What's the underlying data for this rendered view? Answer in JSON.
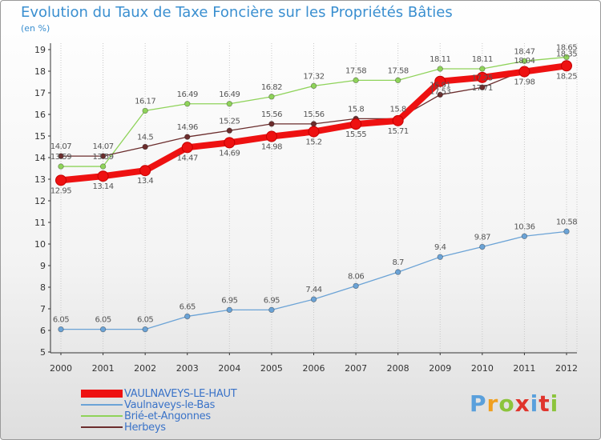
{
  "title": "Evolution du Taux de Taxe Foncière sur les Propriétés Bâties",
  "subtitle": "(en %)",
  "logo": {
    "text": "Proxiti"
  },
  "chart_data": {
    "type": "line",
    "x": [
      "2000",
      "2001",
      "2002",
      "2003",
      "2004",
      "2005",
      "2006",
      "2007",
      "2008",
      "2009",
      "2010",
      "2011",
      "2012"
    ],
    "ylim": [
      5,
      19
    ],
    "yticks": [
      5,
      6,
      7,
      8,
      9,
      10,
      11,
      12,
      13,
      14,
      15,
      16,
      17,
      18,
      19
    ],
    "grid": "vertical-dashed",
    "legend_position": "bottom-left",
    "series": [
      {
        "name": "Brié-et-Angonnes",
        "color": "#8fd35a",
        "values": [
          13.59,
          13.59,
          16.17,
          16.49,
          16.49,
          16.82,
          17.32,
          17.58,
          17.58,
          18.11,
          18.11,
          18.47,
          18.65
        ],
        "labels": [
          "13.59",
          "13.59",
          "16.17",
          "16.49",
          "16.49",
          "16.82",
          "17.32",
          "17.58",
          "17.58",
          "18.11",
          "18.11",
          "18.47",
          "18.65"
        ]
      },
      {
        "name": "Herbeys",
        "color": "#6b2d2d",
        "values": [
          14.07,
          14.07,
          14.5,
          14.96,
          15.25,
          15.56,
          15.56,
          15.8,
          15.8,
          16.91,
          17.25,
          18.04,
          18.35
        ],
        "labels": [
          "14.07",
          "14.07",
          "14.5",
          "14.96",
          "15.25",
          "15.56",
          "15.56",
          "15.8",
          "15.8",
          "16.91",
          "17.25",
          "18.04",
          "18.35"
        ]
      },
      {
        "name": "Vaulnaveys-le-Bas",
        "color": "#6ba3d6",
        "values": [
          6.05,
          6.05,
          6.05,
          6.65,
          6.95,
          6.95,
          7.44,
          8.06,
          8.7,
          9.4,
          9.87,
          10.36,
          10.58
        ],
        "labels": [
          "6.05",
          "6.05",
          "6.05",
          "6.65",
          "6.95",
          "6.95",
          "7.44",
          "8.06",
          "8.7",
          "9.4",
          "9.87",
          "10.36",
          "10.58"
        ]
      },
      {
        "name": "VAULNAVEYS-LE-HAUT",
        "color": "#ee1111",
        "values": [
          12.95,
          13.14,
          13.4,
          14.47,
          14.69,
          14.98,
          15.2,
          15.55,
          15.71,
          17.53,
          17.71,
          17.98,
          18.25
        ],
        "labels": [
          "12.95",
          "13.14",
          "13.4",
          "14.47",
          "14.69",
          "14.98",
          "15.2",
          "15.55",
          "15.71",
          "17.53",
          "17.71",
          "17.98",
          "18.25"
        ]
      }
    ],
    "legend": [
      "VAULNAVEYS-LE-HAUT",
      "Vaulnaveys-le-Bas",
      "Brié-et-Angonnes",
      "Herbeys"
    ]
  }
}
